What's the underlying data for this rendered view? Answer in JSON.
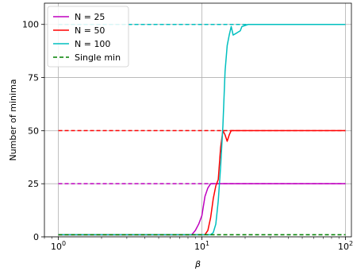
{
  "chart_data": {
    "type": "line",
    "title": "",
    "xlabel": "β",
    "ylabel": "Number of minima",
    "xscale": "log",
    "xlim": [
      0.8,
      110
    ],
    "ylim": [
      0,
      110
    ],
    "x_ticks": [
      {
        "value": 1,
        "base": "10",
        "exp": "0"
      },
      {
        "value": 10,
        "base": "10",
        "exp": "1"
      },
      {
        "value": 100,
        "base": "10",
        "exp": "2"
      }
    ],
    "y_ticks": [
      0,
      25,
      50,
      75,
      100
    ],
    "y_tick_labels": [
      "0",
      "25",
      "50",
      "75",
      "100"
    ],
    "grid": true,
    "legend_position": "top-left",
    "series": [
      {
        "name": "N = 25",
        "color": "#bf00bf",
        "style": "solid",
        "points": [
          [
            1,
            1
          ],
          [
            8.5,
            1
          ],
          [
            9,
            3
          ],
          [
            9.5,
            6
          ],
          [
            10,
            10
          ],
          [
            10.5,
            19
          ],
          [
            11,
            23
          ],
          [
            11.5,
            25
          ],
          [
            12,
            25
          ],
          [
            13,
            25
          ],
          [
            15,
            25
          ],
          [
            20,
            25
          ],
          [
            30,
            25
          ],
          [
            50,
            25
          ],
          [
            100,
            25
          ]
        ]
      },
      {
        "name": "N = 50",
        "color": "#ff0000",
        "style": "solid",
        "points": [
          [
            1,
            1
          ],
          [
            10.5,
            1
          ],
          [
            11,
            3
          ],
          [
            11.5,
            9
          ],
          [
            12,
            18
          ],
          [
            12.5,
            24
          ],
          [
            13,
            27
          ],
          [
            13.5,
            42
          ],
          [
            14,
            50
          ],
          [
            14.5,
            48
          ],
          [
            15,
            45
          ],
          [
            15.5,
            48
          ],
          [
            16,
            50
          ],
          [
            20,
            50
          ],
          [
            30,
            50
          ],
          [
            50,
            50
          ],
          [
            100,
            50
          ]
        ]
      },
      {
        "name": "N = 100",
        "color": "#00bfbf",
        "style": "solid",
        "points": [
          [
            1,
            1
          ],
          [
            11.5,
            1
          ],
          [
            12,
            2
          ],
          [
            12.5,
            6
          ],
          [
            13,
            17
          ],
          [
            13.5,
            33
          ],
          [
            14,
            52
          ],
          [
            14.5,
            78
          ],
          [
            15,
            90
          ],
          [
            15.5,
            95
          ],
          [
            16,
            99
          ],
          [
            16.5,
            95
          ],
          [
            17.5,
            96
          ],
          [
            18.5,
            97
          ],
          [
            19,
            99
          ],
          [
            21,
            100
          ],
          [
            30,
            100
          ],
          [
            50,
            100
          ],
          [
            100,
            100
          ]
        ]
      },
      {
        "name": "Single min",
        "color": "#008000",
        "style": "dashed",
        "points": [
          [
            1,
            1
          ],
          [
            100,
            1
          ]
        ]
      }
    ],
    "reference_lines": [
      {
        "y": 25,
        "color": "#bf00bf",
        "style": "dashed"
      },
      {
        "y": 50,
        "color": "#ff0000",
        "style": "dashed"
      },
      {
        "y": 100,
        "color": "#00bfbf",
        "style": "dashed"
      }
    ]
  }
}
